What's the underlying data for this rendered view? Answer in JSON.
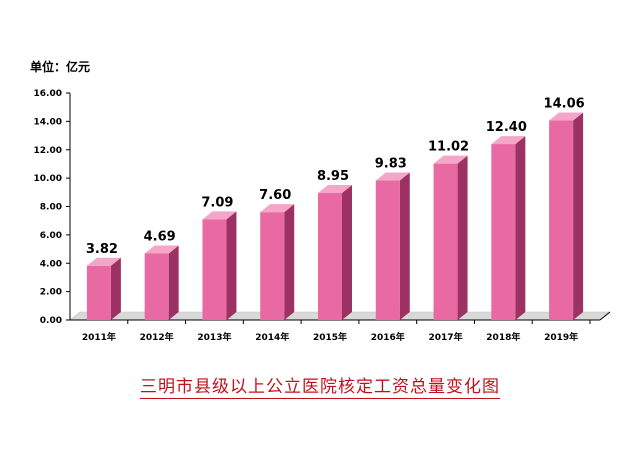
{
  "chart_data": {
    "type": "bar",
    "title": "三明市县级以上公立医院核定工资总量变化图",
    "unit_label": "单位：亿元",
    "ylim": [
      0,
      16
    ],
    "ytick_labels": [
      "0.00",
      "2.00",
      "4.00",
      "6.00",
      "8.00",
      "10.00",
      "12.00",
      "14.00",
      "16.00"
    ],
    "categories": [
      "2011年",
      "2012年",
      "2013年",
      "2014年",
      "2015年",
      "2016年",
      "2017年",
      "2018年",
      "2019年"
    ],
    "values": [
      3.82,
      4.69,
      7.09,
      7.6,
      8.95,
      9.83,
      11.02,
      12.4,
      14.06
    ],
    "value_labels": [
      "3.82",
      "4.69",
      "7.09",
      "7.60",
      "8.95",
      "9.83",
      "11.02",
      "12.40",
      "14.06"
    ],
    "colors": {
      "bar_front": "#e96aa3",
      "bar_side": "#9c3264",
      "bar_top": "#f4a6c8",
      "axis": "#000000",
      "floor": "#d9d9d9",
      "title": "#c0101e"
    }
  }
}
